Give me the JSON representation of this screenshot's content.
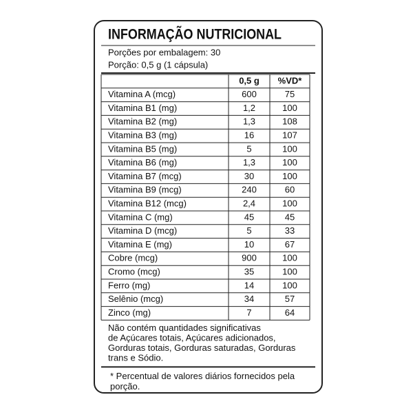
{
  "header": {
    "title": "INFORMAÇÃO NUTRICIONAL",
    "servings_per_package": "Porções por embalagem: 30",
    "serving_size": "Porção: 0,5 g (1 cápsula)"
  },
  "table": {
    "columns": [
      "0,5 g",
      "%VD*"
    ],
    "rows": [
      [
        "Vitamina A (mcg)",
        "600",
        "75"
      ],
      [
        "Vitamina B1 (mg)",
        "1,2",
        "100"
      ],
      [
        "Vitamina B2 (mg)",
        "1,3",
        "108"
      ],
      [
        "Vitamina B3 (mg)",
        "16",
        "107"
      ],
      [
        "Vitamina B5 (mg)",
        "5",
        "100"
      ],
      [
        "Vitamina B6 (mg)",
        "1,3",
        "100"
      ],
      [
        "Vitamina B7 (mcg)",
        "30",
        "100"
      ],
      [
        "Vitamina B9 (mcg)",
        "240",
        "60"
      ],
      [
        "Vitamina B12 (mcg)",
        "2,4",
        "100"
      ],
      [
        "Vitamina C (mg)",
        "45",
        "45"
      ],
      [
        "Vitamina D (mcg)",
        "5",
        "33"
      ],
      [
        "Vitamina E (mg)",
        "10",
        "67"
      ],
      [
        "Cobre (mcg)",
        "900",
        "100"
      ],
      [
        "Cromo (mcg)",
        "35",
        "100"
      ],
      [
        "Ferro (mg)",
        "14",
        "100"
      ],
      [
        "Selênio (mcg)",
        "34",
        "57"
      ],
      [
        "Zinco (mg)",
        "7",
        "64"
      ]
    ]
  },
  "footer": {
    "note": [
      "Não contém quantidades significativas",
      "de Açúcares totais, Açúcares adicionados,",
      "Gorduras totais, Gorduras saturadas, Gorduras",
      "trans e Sódio."
    ],
    "footnote": [
      "* Percentual de valores diários fornecidos pela",
      "porção."
    ]
  }
}
